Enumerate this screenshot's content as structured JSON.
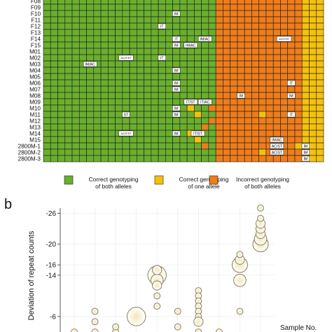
{
  "colors": {
    "both_correct": "#6aaf2e",
    "one_allele": "#f4c20d",
    "both_incorrect": "#ee7d1c",
    "bubble_stroke": "#8a7d5a",
    "bubble_fill_center": "#f2e6b8",
    "gridline": "#e6e6e6"
  },
  "panel_a": {
    "rows": [
      "F08",
      "F09",
      "F10",
      "F11",
      "F12",
      "F13",
      "F14",
      "F15",
      "M01",
      "M02",
      "M03",
      "M04",
      "M05",
      "M06",
      "M07",
      "M08",
      "M09",
      "M10",
      "M11",
      "M12",
      "M13",
      "M14",
      "M15",
      "2800M-1",
      "2800M-2",
      "2800M-3"
    ],
    "num_columns": 39,
    "boundaries": [
      [
        24,
        36
      ],
      [
        24,
        36
      ],
      [
        24,
        36
      ],
      [
        24,
        36
      ],
      [
        24,
        36
      ],
      [
        24,
        36
      ],
      [
        24,
        36
      ],
      [
        24,
        36
      ],
      [
        24,
        36
      ],
      [
        24,
        36
      ],
      [
        24,
        36
      ],
      [
        24,
        36
      ],
      [
        24,
        36
      ],
      [
        24,
        36
      ],
      [
        24,
        36
      ],
      [
        24,
        36
      ],
      [
        24,
        36
      ],
      [
        24,
        36
      ],
      [
        24,
        36
      ],
      [
        24,
        36
      ],
      [
        24,
        36
      ],
      [
        24,
        36
      ],
      [
        24,
        36
      ],
      [
        24,
        36
      ],
      [
        24,
        36
      ],
      [
        24,
        36
      ]
    ],
    "yellow_cells": [
      [
        17,
        20
      ],
      [
        18,
        21
      ],
      [
        21,
        20
      ],
      [
        22,
        21
      ],
      [
        16,
        38
      ],
      [
        18,
        30
      ],
      [
        23,
        35
      ],
      [
        24,
        30
      ],
      [
        25,
        38
      ]
    ],
    "orange_cells": [
      [
        17,
        23
      ],
      [
        19,
        23
      ],
      [
        20,
        22
      ],
      [
        23,
        22
      ]
    ],
    "annotations": [
      {
        "row": 2,
        "col": 18,
        "text": "IM"
      },
      {
        "row": 4,
        "col": 16,
        "text": "IT"
      },
      {
        "row": 6,
        "col": 18,
        "text": "IT"
      },
      {
        "row": 6,
        "col": 22,
        "text": "IM/AC"
      },
      {
        "row": 6,
        "col": 33,
        "text": "AC/IT/ST"
      },
      {
        "row": 7,
        "col": 18,
        "text": "IM"
      },
      {
        "row": 7,
        "col": 20,
        "text": "IM/AC"
      },
      {
        "row": 9,
        "col": 11,
        "text": "AC/IT/ST"
      },
      {
        "row": 9,
        "col": 16,
        "text": "IT"
      },
      {
        "row": 10,
        "col": 6,
        "text": "IM/AC"
      },
      {
        "row": 11,
        "col": 18,
        "text": "IM"
      },
      {
        "row": 13,
        "col": 18,
        "text": "IM"
      },
      {
        "row": 13,
        "col": 34,
        "text": "IT"
      },
      {
        "row": 14,
        "col": 18,
        "text": "IM"
      },
      {
        "row": 15,
        "col": 27,
        "text": "IM"
      },
      {
        "row": 15,
        "col": 34,
        "text": "IM"
      },
      {
        "row": 16,
        "col": 20,
        "text": "IT/ST"
      },
      {
        "row": 16,
        "col": 22,
        "text": "IT/AC"
      },
      {
        "row": 17,
        "col": 18,
        "text": "IM"
      },
      {
        "row": 18,
        "col": 11,
        "text": "ST"
      },
      {
        "row": 18,
        "col": 18,
        "text": "IM"
      },
      {
        "row": 18,
        "col": 34,
        "text": "IT"
      },
      {
        "row": 21,
        "col": 11,
        "text": "AC/IT/ST"
      },
      {
        "row": 21,
        "col": 18,
        "text": "IM"
      },
      {
        "row": 21,
        "col": 21,
        "text": "IT/ST"
      },
      {
        "row": 22,
        "col": 32,
        "text": "IM/AC"
      },
      {
        "row": 23,
        "col": 32,
        "text": "AC/ST"
      },
      {
        "row": 23,
        "col": 36,
        "text": "IM"
      },
      {
        "row": 24,
        "col": 32,
        "text": "AC/ST"
      },
      {
        "row": 24,
        "col": 36,
        "text": "IM"
      },
      {
        "row": 25,
        "col": 36,
        "text": "IM"
      }
    ],
    "legend": [
      {
        "color_key": "both_correct",
        "line1": "Correct genotyping",
        "line2": "of both alleles"
      },
      {
        "color_key": "one_allele",
        "line1": "Correct genotyping",
        "line2": "of one allele"
      },
      {
        "color_key": "both_incorrect",
        "line1": "Incorrect genotyping",
        "line2": "of both alleles"
      }
    ]
  },
  "panel_b": {
    "label": "b",
    "ylabel": "Deviation of repeat counts",
    "xlabel_partial": "Sample No.",
    "yticks_shown": [
      -26,
      -20,
      -16,
      -14,
      -6
    ],
    "ylim_visible": [
      -3,
      -27
    ]
  },
  "chart_data": {
    "type": "scatter",
    "title": "",
    "xlabel": "",
    "ylabel": "Deviation of repeat counts",
    "ylim": [
      -3,
      -27
    ],
    "yticks": [
      -26,
      -20,
      -16,
      -14,
      -6
    ],
    "note_size": "bubble radius ∝ count",
    "points": [
      {
        "x": 1,
        "y": -3,
        "r": 2
      },
      {
        "x": 2,
        "y": -3,
        "r": 2
      },
      {
        "x": 2,
        "y": -5,
        "r": 2
      },
      {
        "x": 2,
        "y": -7,
        "r": 2
      },
      {
        "x": 3,
        "y": -3,
        "r": 2
      },
      {
        "x": 3,
        "y": -4,
        "r": 2
      },
      {
        "x": 4,
        "y": -6,
        "r": 6
      },
      {
        "x": 5,
        "y": -14,
        "r": 6
      },
      {
        "x": 5,
        "y": -13,
        "r": 4
      },
      {
        "x": 5,
        "y": -15,
        "r": 3
      },
      {
        "x": 5,
        "y": -12,
        "r": 3
      },
      {
        "x": 5,
        "y": -10,
        "r": 2
      },
      {
        "x": 5,
        "y": -8,
        "r": 2
      },
      {
        "x": 6,
        "y": -7,
        "r": 2
      },
      {
        "x": 6,
        "y": -4,
        "r": 2
      },
      {
        "x": 7,
        "y": -11,
        "r": 2
      },
      {
        "x": 7,
        "y": -10,
        "r": 2
      },
      {
        "x": 7,
        "y": -9,
        "r": 2
      },
      {
        "x": 7,
        "y": -8,
        "r": 2
      },
      {
        "x": 7,
        "y": -7,
        "r": 2
      },
      {
        "x": 7,
        "y": -6,
        "r": 2
      },
      {
        "x": 7,
        "y": -5,
        "r": 3
      },
      {
        "x": 7,
        "y": -3,
        "r": 2
      },
      {
        "x": 8,
        "y": -3,
        "r": 2
      },
      {
        "x": 9,
        "y": -7,
        "r": 2
      },
      {
        "x": 9,
        "y": -13,
        "r": 4
      },
      {
        "x": 9,
        "y": -16,
        "r": 5
      },
      {
        "x": 9,
        "y": -17,
        "r": 3
      },
      {
        "x": 9,
        "y": -18,
        "r": 2
      },
      {
        "x": 10,
        "y": -20,
        "r": 5
      },
      {
        "x": 10,
        "y": -21,
        "r": 4
      },
      {
        "x": 10,
        "y": -22,
        "r": 3
      },
      {
        "x": 10,
        "y": -23,
        "r": 3
      },
      {
        "x": 10,
        "y": -24,
        "r": 3
      },
      {
        "x": 10,
        "y": -25,
        "r": 2
      },
      {
        "x": 10,
        "y": -27,
        "r": 2
      }
    ]
  }
}
